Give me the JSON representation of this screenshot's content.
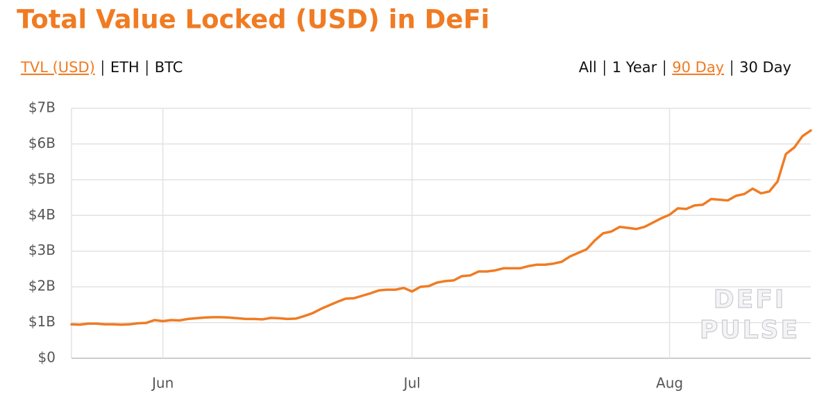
{
  "chart_data": {
    "type": "line",
    "title": "Total Value Locked (USD) in DeFi",
    "metric_tabs": [
      "TVL (USD)",
      "ETH",
      "BTC"
    ],
    "active_metric": 0,
    "range_tabs": [
      "All",
      "1 Year",
      "90 Day",
      "30 Day"
    ],
    "active_range": 2,
    "watermark": [
      "DEFI",
      "PULSE"
    ],
    "color": "#f07b22",
    "categories": [
      null,
      null,
      null,
      null,
      null,
      null,
      null,
      null,
      null,
      null,
      null,
      "Jun",
      null,
      null,
      null,
      null,
      null,
      null,
      null,
      null,
      null,
      null,
      null,
      null,
      null,
      null,
      null,
      null,
      null,
      null,
      null,
      null,
      null,
      null,
      null,
      null,
      null,
      null,
      null,
      null,
      null,
      "Jul",
      null,
      null,
      null,
      null,
      null,
      null,
      null,
      null,
      null,
      null,
      null,
      null,
      null,
      null,
      null,
      null,
      null,
      null,
      null,
      null,
      null,
      null,
      null,
      null,
      null,
      null,
      null,
      null,
      null,
      null,
      "Aug",
      null,
      null,
      null,
      null,
      null,
      null,
      null,
      null,
      null,
      null,
      null,
      null,
      null,
      null,
      null,
      null,
      null
    ],
    "values": [
      0.95,
      0.94,
      0.97,
      0.97,
      0.95,
      0.95,
      0.94,
      0.95,
      0.98,
      0.99,
      1.07,
      1.04,
      1.07,
      1.06,
      1.1,
      1.12,
      1.14,
      1.15,
      1.15,
      1.14,
      1.12,
      1.1,
      1.1,
      1.09,
      1.13,
      1.12,
      1.1,
      1.11,
      1.18,
      1.26,
      1.38,
      1.48,
      1.58,
      1.67,
      1.68,
      1.75,
      1.82,
      1.9,
      1.92,
      1.92,
      1.97,
      1.87,
      2.0,
      2.02,
      2.12,
      2.16,
      2.18,
      2.3,
      2.32,
      2.43,
      2.43,
      2.46,
      2.52,
      2.52,
      2.52,
      2.58,
      2.62,
      2.62,
      2.65,
      2.7,
      2.85,
      2.95,
      3.05,
      3.3,
      3.5,
      3.55,
      3.68,
      3.65,
      3.62,
      3.68,
      3.8,
      3.92,
      4.02,
      4.2,
      4.18,
      4.28,
      4.3,
      4.46,
      4.44,
      4.42,
      4.55,
      4.6,
      4.75,
      4.62,
      4.67,
      4.95,
      5.72,
      5.9,
      6.22,
      6.38
    ],
    "ylim": [
      0,
      7
    ],
    "yticks": [
      {
        "value": 0,
        "label": "$0"
      },
      {
        "value": 1,
        "label": "$1B"
      },
      {
        "value": 2,
        "label": "$2B"
      },
      {
        "value": 3,
        "label": "$3B"
      },
      {
        "value": 4,
        "label": "$4B"
      },
      {
        "value": 5,
        "label": "$5B"
      },
      {
        "value": 6,
        "label": "$6B"
      },
      {
        "value": 7,
        "label": "$7B"
      }
    ],
    "grid": true
  }
}
